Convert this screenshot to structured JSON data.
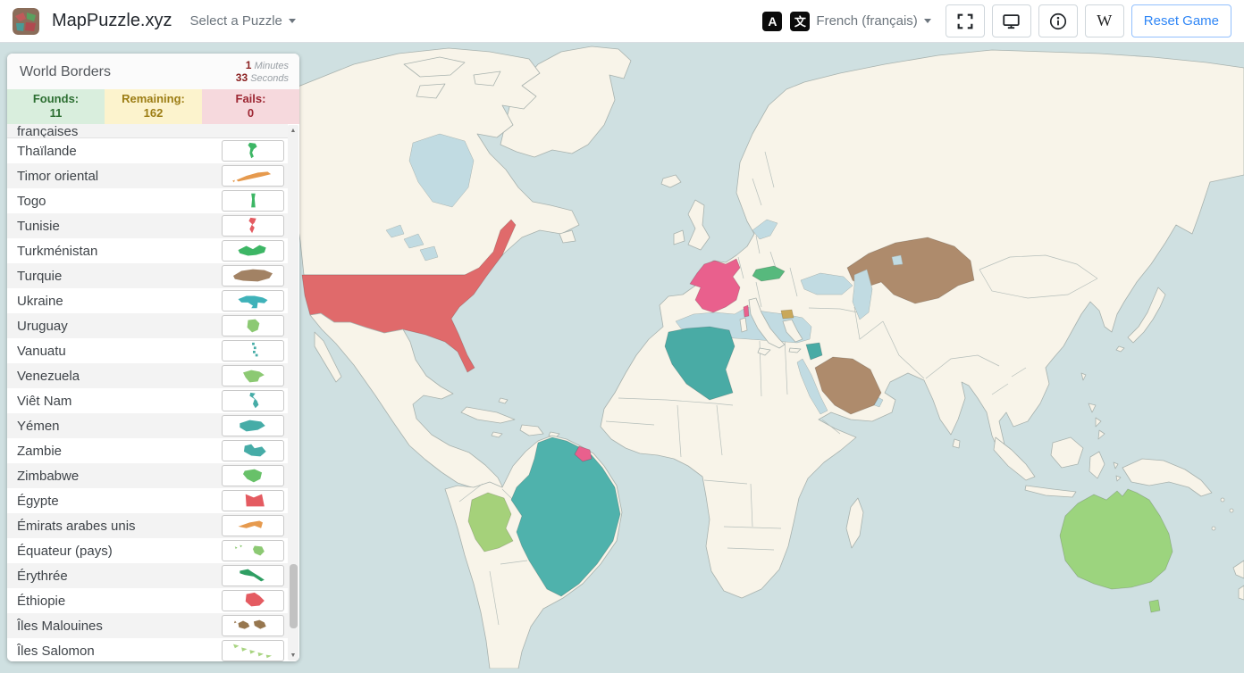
{
  "navbar": {
    "brand": "MapPuzzle.xyz",
    "select_puzzle": "Select a Puzzle",
    "language": "French (français)",
    "translate_a": "A",
    "translate_char": "文",
    "wikipedia": "W",
    "reset": "Reset Game",
    "icons": [
      "puzzle-logo-icon",
      "caret-down-icon",
      "translate-icon",
      "fullscreen-icon",
      "display-icon",
      "info-icon",
      "wikipedia-icon"
    ]
  },
  "panel": {
    "title": "World Borders",
    "timer": {
      "minutes": "1",
      "minutes_unit": "Minutes",
      "seconds": "33",
      "seconds_unit": "Seconds"
    },
    "stats": {
      "founds_label": "Founds:",
      "founds_value": "11",
      "founds_bg": "#d9eedd",
      "founds_color": "#2c6e31",
      "remaining_label": "Remaining:",
      "remaining_value": "162",
      "remaining_bg": "#fcf3cd",
      "remaining_color": "#9c7d14",
      "fails_label": "Fails:",
      "fails_value": "0",
      "fails_bg": "#f6d9dd",
      "fails_color": "#9d2733"
    },
    "list": {
      "items": [
        {
          "key": "francaises",
          "label": "françaises",
          "color": ""
        },
        {
          "key": "thailand",
          "label": "Thaïlande",
          "color": "#3db665"
        },
        {
          "key": "timor",
          "label": "Timor oriental",
          "color": "#e69a4e"
        },
        {
          "key": "togo",
          "label": "Togo",
          "color": "#3db665"
        },
        {
          "key": "tunisia",
          "label": "Tunisie",
          "color": "#e45b61"
        },
        {
          "key": "turkmenistan",
          "label": "Turkménistan",
          "color": "#3db665"
        },
        {
          "key": "turkey",
          "label": "Turquie",
          "color": "#a28264"
        },
        {
          "key": "ukraine",
          "label": "Ukraine",
          "color": "#3fb2b9"
        },
        {
          "key": "uruguay",
          "label": "Uruguay",
          "color": "#8cc973"
        },
        {
          "key": "vanuatu",
          "label": "Vanuatu",
          "color": "#46aca7"
        },
        {
          "key": "venezuela",
          "label": "Venezuela",
          "color": "#8cc973"
        },
        {
          "key": "vietnam",
          "label": "Viêt Nam",
          "color": "#46aca7"
        },
        {
          "key": "yemen",
          "label": "Yémen",
          "color": "#46aca7"
        },
        {
          "key": "zambia",
          "label": "Zambie",
          "color": "#46aca7"
        },
        {
          "key": "zimbabwe",
          "label": "Zimbabwe",
          "color": "#68c169"
        },
        {
          "key": "egypt",
          "label": "Égypte",
          "color": "#e45b61"
        },
        {
          "key": "uae",
          "label": "Émirats arabes unis",
          "color": "#e69a4e"
        },
        {
          "key": "ecuador",
          "label": "Équateur (pays)",
          "color": "#8cc973"
        },
        {
          "key": "eritrea",
          "label": "Érythrée",
          "color": "#2f9e63"
        },
        {
          "key": "ethiopia",
          "label": "Éthiopie",
          "color": "#e45b61"
        },
        {
          "key": "falkland",
          "label": "Îles Malouines",
          "color": "#97774f"
        },
        {
          "key": "solomon",
          "label": "Îles Salomon",
          "color": "#a8d481"
        }
      ]
    }
  },
  "map": {
    "ocean": "#cfe0e1",
    "sea": "#c1dbe2",
    "land": "#f8f4e9",
    "border": "#a8b2ae",
    "colors": {
      "usa": "#e06a6b",
      "france": "#e9608d",
      "corsica": "#e9608d",
      "french_guiana": "#e9608d",
      "austria": "#57b97d",
      "north_macedonia": "#c9a85a",
      "algeria": "#49aba5",
      "syria": "#49aba5",
      "saudi_arabia": "#ae8b6c",
      "kazakhstan": "#ae8b6c",
      "brazil": "#4fb2ac",
      "bolivia": "#a5d17a",
      "australia": "#9cd47e"
    }
  }
}
